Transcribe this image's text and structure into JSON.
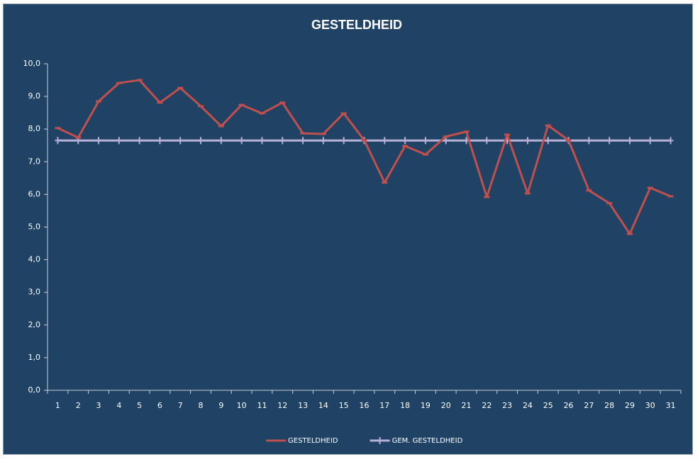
{
  "chart_data": {
    "type": "line",
    "title": "GESTELDHEID",
    "categories": [
      "1",
      "2",
      "3",
      "4",
      "5",
      "6",
      "7",
      "8",
      "9",
      "10",
      "11",
      "12",
      "13",
      "14",
      "15",
      "16",
      "17",
      "18",
      "19",
      "20",
      "21",
      "22",
      "23",
      "24",
      "25",
      "26",
      "27",
      "28",
      "29",
      "30",
      "31"
    ],
    "series": [
      {
        "name": "GESTELDHEID",
        "color": "#c0504d",
        "marker": "dash",
        "values": [
          8.03,
          7.74,
          8.85,
          9.41,
          9.5,
          8.81,
          9.26,
          8.7,
          8.09,
          8.74,
          8.48,
          8.81,
          7.87,
          7.85,
          8.48,
          7.66,
          6.36,
          7.48,
          7.22,
          7.77,
          7.92,
          5.92,
          7.83,
          6.03,
          8.11,
          7.66,
          6.12,
          5.73,
          4.79,
          6.2,
          5.94
        ]
      },
      {
        "name": "GEM. GESTELDHEID",
        "color": "#b7b1d6",
        "marker": "plus",
        "values": [
          7.65,
          7.65,
          7.65,
          7.65,
          7.65,
          7.65,
          7.65,
          7.65,
          7.65,
          7.65,
          7.65,
          7.65,
          7.65,
          7.65,
          7.65,
          7.65,
          7.65,
          7.65,
          7.65,
          7.65,
          7.65,
          7.65,
          7.65,
          7.65,
          7.65,
          7.65,
          7.65,
          7.65,
          7.65,
          7.65,
          7.65
        ]
      }
    ],
    "ylim": [
      0,
      10
    ],
    "yticks": [
      {
        "value": 0,
        "label": "0,0"
      },
      {
        "value": 1,
        "label": "1,0"
      },
      {
        "value": 2,
        "label": "2,0"
      },
      {
        "value": 3,
        "label": "3,0"
      },
      {
        "value": 4,
        "label": "4,0"
      },
      {
        "value": 5,
        "label": "5,0"
      },
      {
        "value": 6,
        "label": "6,0"
      },
      {
        "value": 7,
        "label": "7,0"
      },
      {
        "value": 8,
        "label": "8,0"
      },
      {
        "value": 9,
        "label": "9,0"
      },
      {
        "value": 10,
        "label": "10,0"
      }
    ],
    "grid": false,
    "legend": "bottom"
  }
}
